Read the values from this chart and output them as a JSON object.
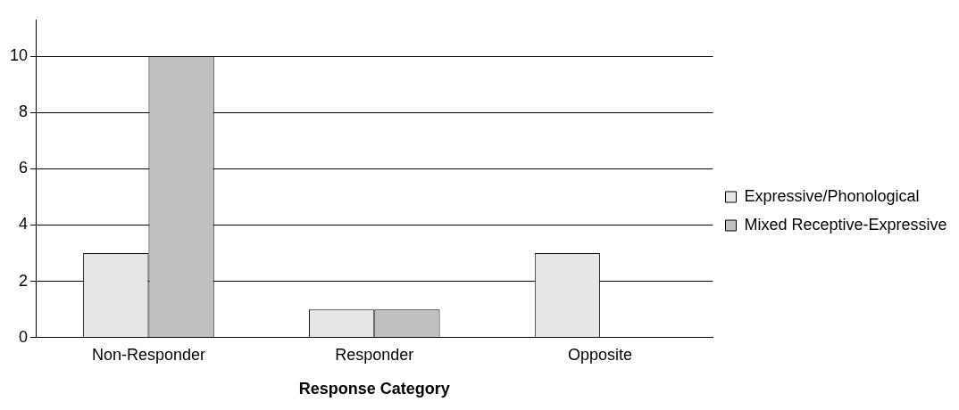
{
  "chart_data": {
    "type": "bar",
    "xlabel": "Response Category",
    "categories": [
      "Non-Responder",
      "Responder",
      "Opposite"
    ],
    "series": [
      {
        "name": "Expressive/Phonological",
        "color": "#e6e6e6",
        "values": [
          3,
          1,
          3
        ]
      },
      {
        "name": "Mixed Receptive-Expressive",
        "color": "#c0c0c0",
        "values": [
          10,
          1,
          0
        ]
      }
    ],
    "ylim": [
      0,
      11.3
    ],
    "yticks": [
      0,
      2,
      4,
      6,
      8,
      10
    ],
    "grid": "y",
    "legend": "right"
  }
}
